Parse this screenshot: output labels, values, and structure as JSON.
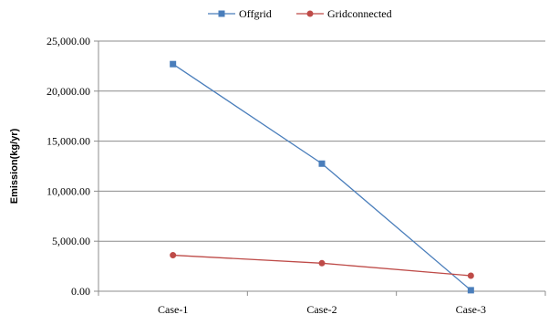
{
  "chart_data": {
    "type": "line",
    "title": "",
    "xlabel": "",
    "ylabel": "Emission(kg/yr)",
    "categories": [
      "Case-1",
      "Case-2",
      "Case-3"
    ],
    "yticks": [
      "0.00",
      "5,000.00",
      "10,000.00",
      "15,000.00",
      "20,000.00",
      "25,000.00"
    ],
    "ylim": [
      0,
      25000
    ],
    "grid": true,
    "legend_position": "top",
    "series": [
      {
        "name": "Offgrid",
        "values": [
          22700,
          12750,
          100
        ],
        "color": "#4a7ebb",
        "marker": "square"
      },
      {
        "name": "Gridconnected",
        "values": [
          3600,
          2800,
          1550
        ],
        "color": "#be4b48",
        "marker": "circle"
      }
    ]
  }
}
